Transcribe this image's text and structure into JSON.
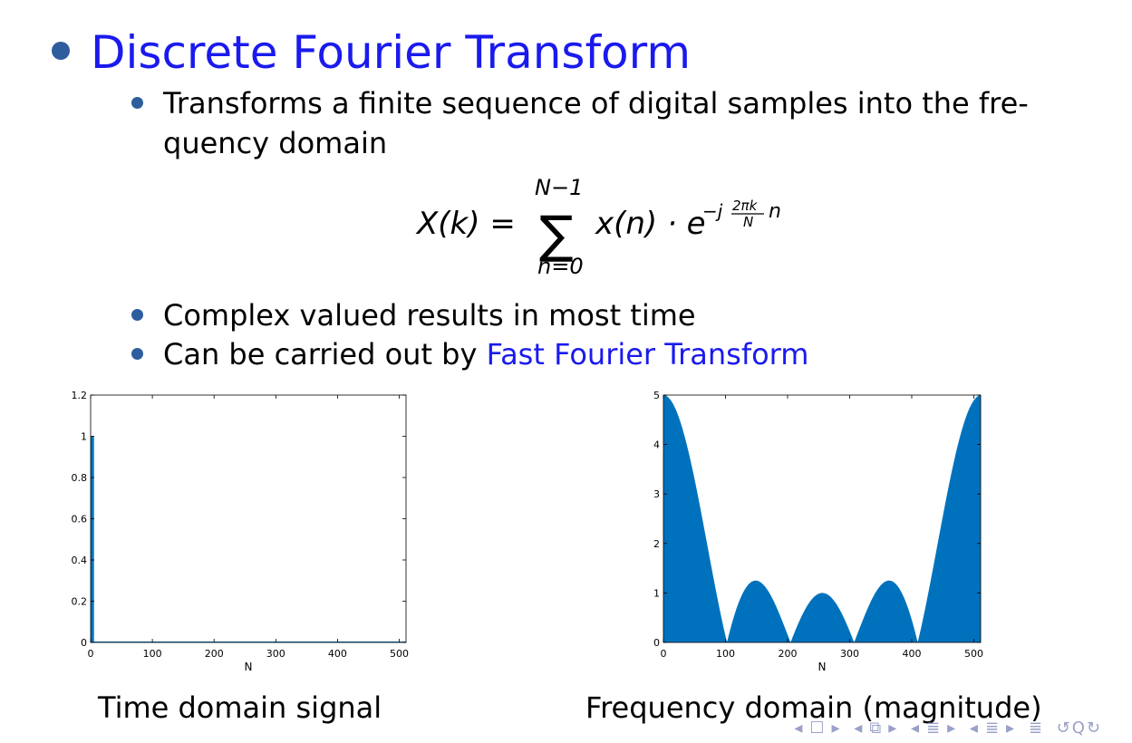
{
  "slide": {
    "title": "Discrete Fourier Transform",
    "bullets": [
      {
        "line1": "Transforms a finite sequence of digital samples into the fre-",
        "line2": "quency domain"
      },
      {
        "text": "Complex valued results in most time"
      },
      {
        "prefix": "Can be carried out by ",
        "link": "Fast Fourier Transform"
      }
    ],
    "formula": {
      "lhs": "X(k) =",
      "sum_upper": "N−1",
      "sum_lower": "n=0",
      "body": "x(n) · e",
      "exp_prefix": "−j",
      "frac_num": "2πk",
      "frac_den": "N",
      "exp_suffix": "n"
    },
    "captions": {
      "left": "Time domain signal",
      "right": "Frequency domain (magnitude)"
    },
    "colors": {
      "title": "#1a1aee",
      "bullet": "#2e5d9e",
      "plot_fill": "#0072bd"
    }
  },
  "chart_data": [
    {
      "type": "bar",
      "xlabel": "N",
      "ylabel": "",
      "xlim": [
        0,
        511
      ],
      "ylim": [
        0,
        1.2
      ],
      "xticks": [
        "0",
        "100",
        "200",
        "300",
        "400",
        "500"
      ],
      "yticks": [
        "0",
        "0.2",
        "0.4",
        "0.6",
        "0.8",
        "1",
        "1.2"
      ],
      "x": [
        0,
        1,
        2,
        3,
        4
      ],
      "values": [
        1,
        1,
        1,
        1,
        1
      ],
      "note_series": "value 1 for n=0..4, 0 elsewhere up to 511"
    },
    {
      "type": "area",
      "xlabel": "N",
      "ylabel": "",
      "xlim": [
        0,
        511
      ],
      "ylim": [
        0,
        5
      ],
      "xticks": [
        "0",
        "100",
        "200",
        "300",
        "400",
        "500"
      ],
      "yticks": [
        "0",
        "1",
        "2",
        "3",
        "4",
        "5"
      ],
      "function": "magnitude of DFT of 5-sample rectangular pulse, N=512",
      "pulse_length": 5,
      "N": 512,
      "peak": 5
    }
  ]
}
